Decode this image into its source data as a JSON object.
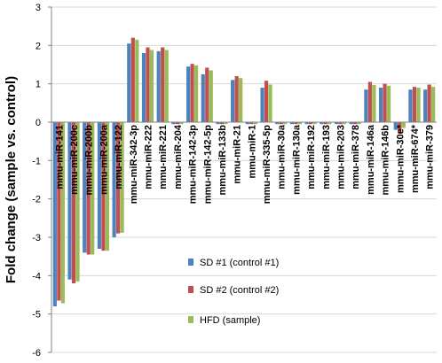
{
  "chart_data": {
    "type": "bar",
    "title": "",
    "xlabel": "",
    "ylabel": "Fold change (sample vs. control)",
    "ylim": [
      -6,
      3
    ],
    "yticks": [
      3,
      2,
      1,
      0,
      -1,
      -2,
      -3,
      -4,
      -5,
      -6
    ],
    "grid": "horizontal",
    "legend_position": "bottom-center",
    "categories": [
      "mmu-miR-141",
      "mmu-miR-200c",
      "mmu-miR-200b",
      "mmu-miR-200a",
      "mmu-miR-122",
      "mmu-miR-342-3p",
      "mmu-miR-222",
      "mmu-miR-221",
      "mmu-miR-204",
      "mmu-miR-142-3p",
      "mmu-miR-142-5p",
      "mmu-miR-133b",
      "mmu-miR-21",
      "mmu-miR-1",
      "mmu-miR-335-5p",
      "mmu-miR-30a",
      "mmu-miR-130a",
      "mmu-miR-192",
      "mmu-miR-193",
      "mmu-miR-203",
      "mmu-miR-378",
      "mmu-miR-146a",
      "mmu-miR-146b",
      "mmu-miR-30e*",
      "mmu-miR-674*",
      "mmu-miR-379"
    ],
    "series": [
      {
        "name": "SD #1 (control #1)",
        "color": "#4f81bd",
        "values": [
          -4.8,
          -4.1,
          -3.4,
          -3.3,
          -3.0,
          2.05,
          1.8,
          1.85,
          -0.05,
          1.45,
          1.25,
          -0.05,
          1.1,
          -0.05,
          0.9,
          -0.05,
          -0.05,
          -0.05,
          -0.05,
          -0.05,
          -0.05,
          0.85,
          0.9,
          -0.2,
          0.85,
          0.85
        ]
      },
      {
        "name": "SD #2 (control #2)",
        "color": "#c0504d",
        "values": [
          -4.65,
          -4.2,
          -3.45,
          -3.35,
          -2.9,
          2.2,
          1.95,
          1.95,
          -0.05,
          1.52,
          1.42,
          -0.05,
          1.2,
          -0.05,
          1.08,
          -0.05,
          -0.05,
          -0.05,
          -0.05,
          -0.05,
          -0.05,
          1.05,
          1.0,
          -0.3,
          0.92,
          0.98
        ]
      },
      {
        "name": "HFD   (sample)",
        "color": "#9bbb59",
        "values": [
          -4.72,
          -4.15,
          -3.45,
          -3.35,
          -2.88,
          2.15,
          1.88,
          1.88,
          -0.05,
          1.48,
          1.35,
          -0.05,
          1.15,
          -0.05,
          0.98,
          -0.05,
          -0.05,
          -0.05,
          -0.05,
          -0.05,
          -0.05,
          0.97,
          0.95,
          -0.15,
          0.9,
          0.92
        ]
      }
    ]
  }
}
